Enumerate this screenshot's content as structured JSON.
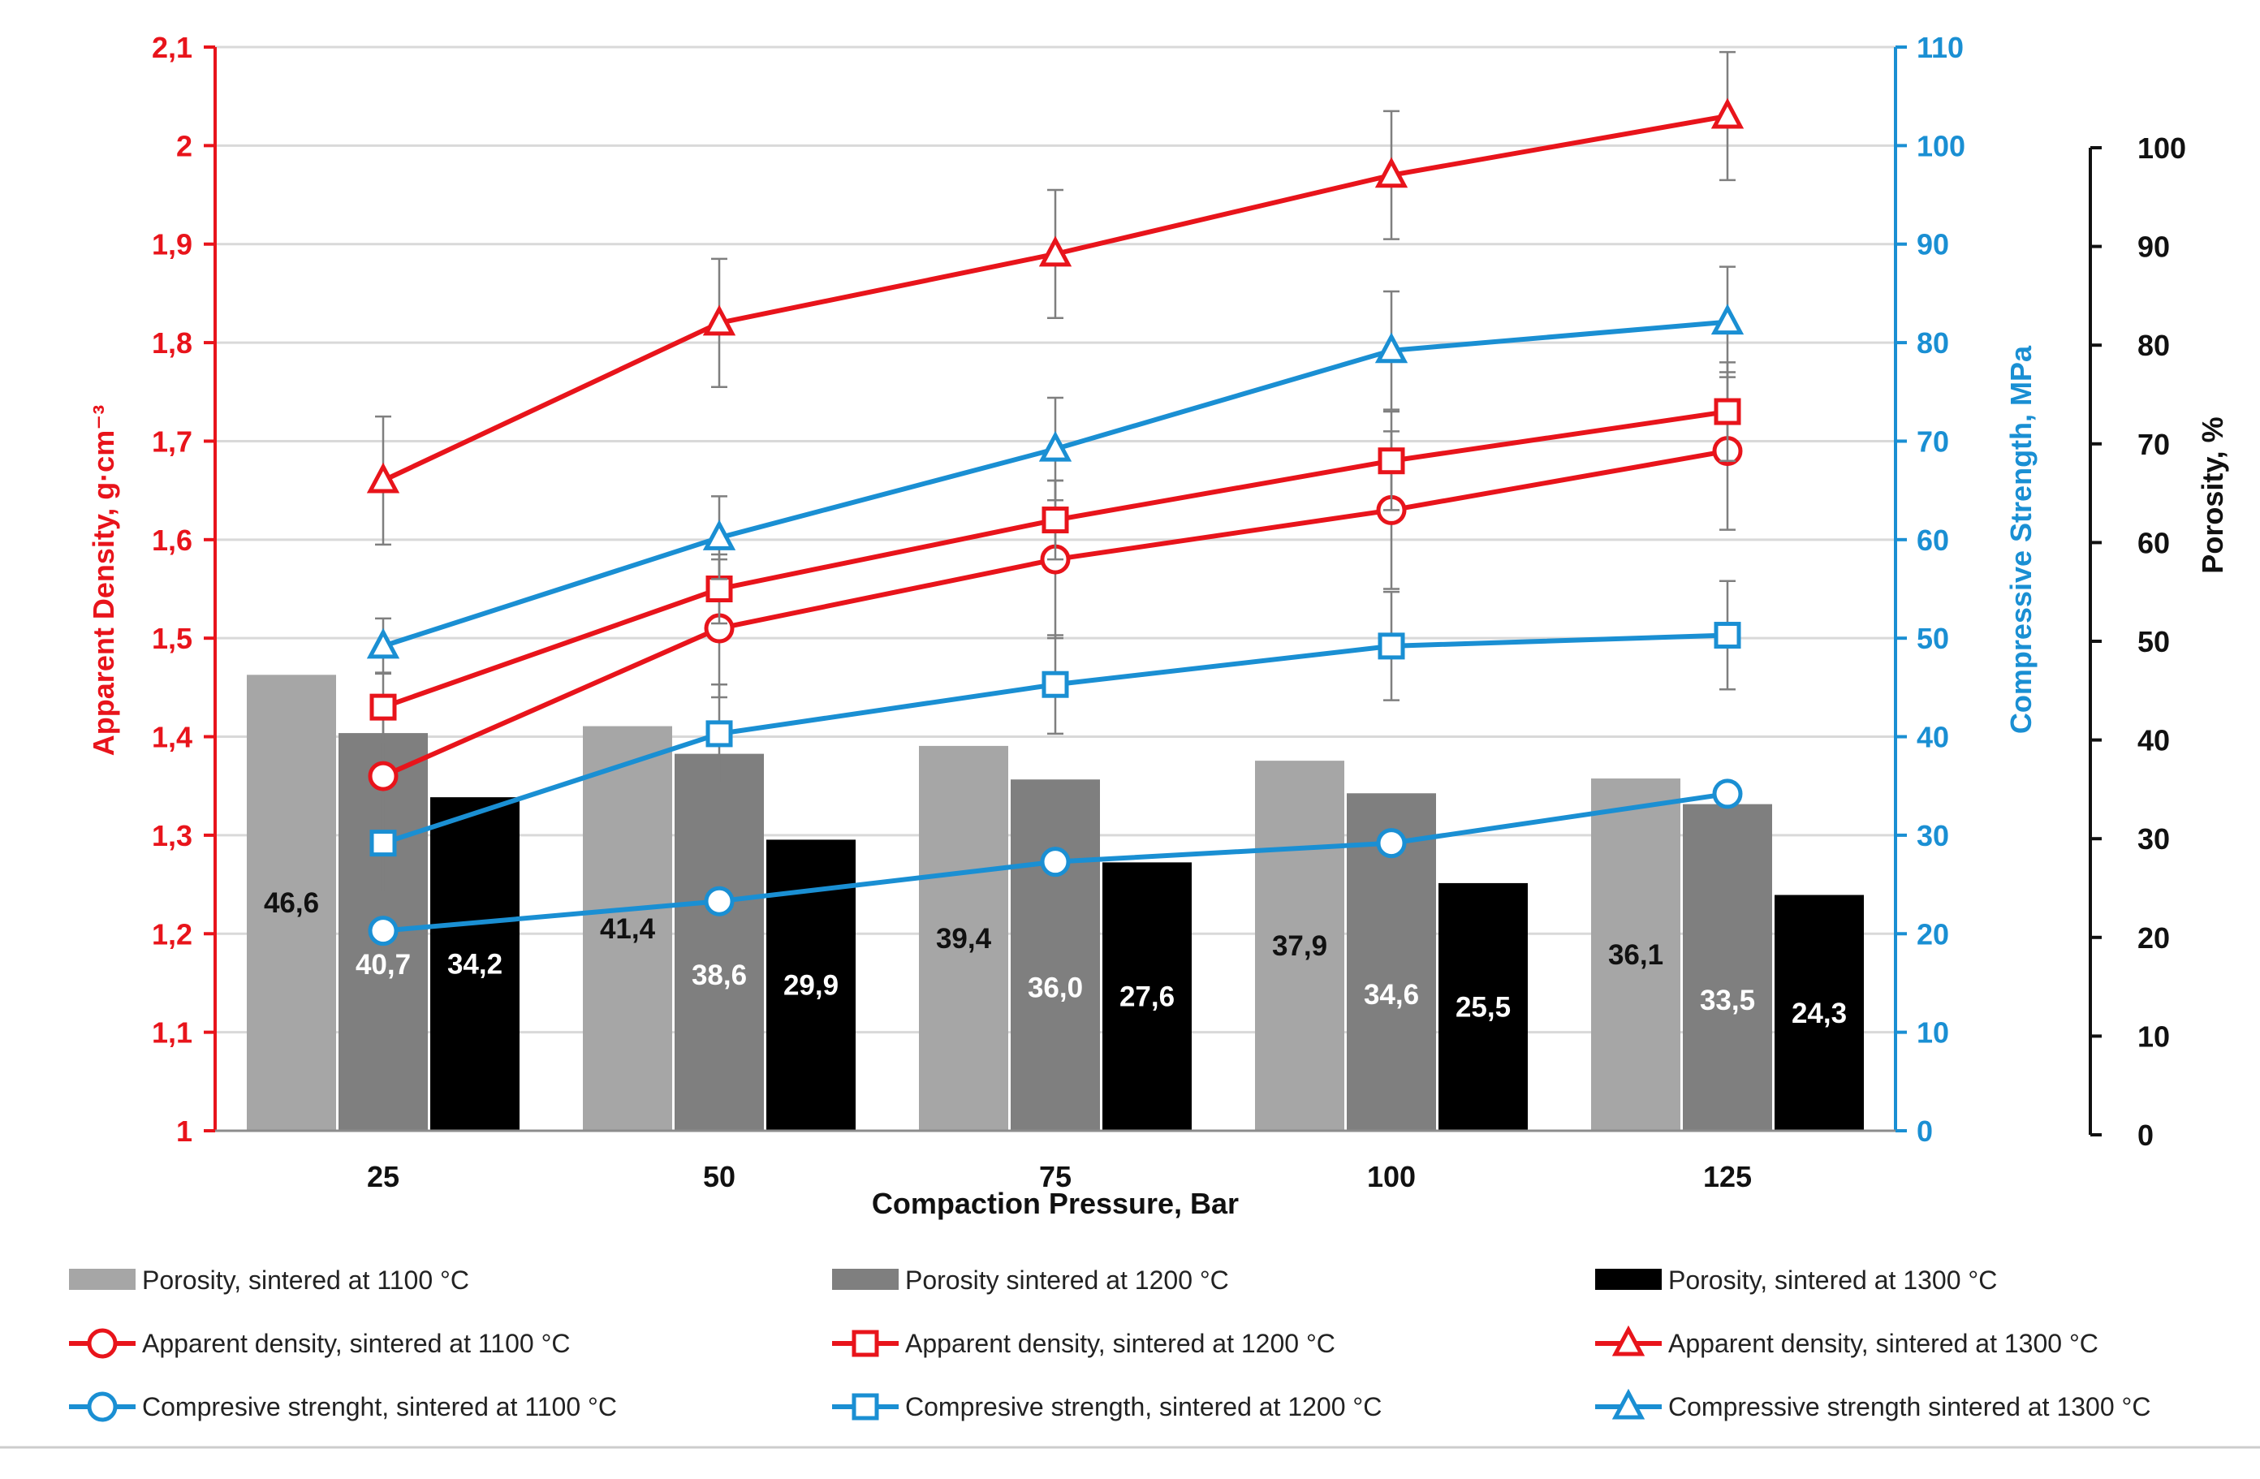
{
  "chart_data": {
    "type": "bar",
    "categories": [
      "25",
      "50",
      "75",
      "100",
      "125"
    ],
    "xlabel": "Compaction Pressure, Bar",
    "axes": {
      "left": {
        "label": "Apparent Density, g·cm⁻³",
        "range": [
          1,
          2.1
        ],
        "ticks": [
          "1",
          "1,1",
          "1,2",
          "1,3",
          "1,4",
          "1,5",
          "1,6",
          "1,7",
          "1,8",
          "1,9",
          "2",
          "2,1"
        ],
        "color": "#e8141b"
      },
      "right_inner": {
        "label": "Compressive Strength, MPa",
        "range": [
          0,
          110
        ],
        "ticks": [
          "0",
          "10",
          "20",
          "30",
          "40",
          "50",
          "60",
          "70",
          "80",
          "90",
          "100",
          "110"
        ],
        "color": "#1a8fd3"
      },
      "right_outer": {
        "label": "Porosity, %",
        "range": [
          0,
          100
        ],
        "ticks": [
          "0",
          "10",
          "20",
          "30",
          "40",
          "50",
          "60",
          "70",
          "80",
          "90",
          "100"
        ],
        "color": "#111111"
      }
    },
    "gridlines": true,
    "bar_series": [
      {
        "name": "Porosity, sintered at 1100 °C",
        "values": [
          46.6,
          41.4,
          39.4,
          37.9,
          36.1
        ],
        "labels": [
          "46,6",
          "41,4",
          "39,4",
          "37,9",
          "36,1"
        ],
        "color": "#a6a6a6",
        "label_color": "#111111"
      },
      {
        "name": "Porosity sintered at 1200 °C",
        "values": [
          40.7,
          38.6,
          36.0,
          34.6,
          33.5
        ],
        "labels": [
          "40,7",
          "38,6",
          "36,0",
          "34,6",
          "33,5"
        ],
        "color": "#7f7f7f",
        "label_color": "#ffffff"
      },
      {
        "name": "Porosity, sintered at 1300 °C",
        "values": [
          34.2,
          29.9,
          27.6,
          25.5,
          24.3
        ],
        "labels": [
          "34,2",
          "29,9",
          "27,6",
          "25,5",
          "24,3"
        ],
        "color": "#000000",
        "label_color": "#ffffff"
      }
    ],
    "line_series": [
      {
        "name": "Apparent density, sintered at 1100 °C",
        "axis": "left",
        "marker": "circle",
        "color": "#e8141b",
        "values": [
          1.36,
          1.51,
          1.58,
          1.63,
          1.69
        ],
        "errors": [
          0.06,
          0.07,
          0.08,
          0.08,
          0.08
        ]
      },
      {
        "name": "Apparent density, sintered at 1200 °C",
        "axis": "left",
        "marker": "square",
        "color": "#e8141b",
        "values": [
          1.43,
          1.55,
          1.62,
          1.68,
          1.73
        ],
        "errors": [
          0.035,
          0.035,
          0.04,
          0.05,
          0.05
        ]
      },
      {
        "name": "Apparent density, sintered at 1300 °C",
        "axis": "left",
        "marker": "triangle",
        "color": "#e8141b",
        "values": [
          1.66,
          1.82,
          1.89,
          1.97,
          2.03
        ],
        "errors": [
          0.065,
          0.065,
          0.065,
          0.065,
          0.065
        ]
      },
      {
        "name": "Compresive strenght, sintered at 1100 °C",
        "axis": "right_inner",
        "marker": "circle",
        "color": "#1a8fd3",
        "values": [
          20.3,
          23.3,
          27.3,
          29.2,
          34.2
        ],
        "errors": [
          0,
          0,
          0,
          0,
          0
        ]
      },
      {
        "name": "Compresive strength, sintered at 1200 °C",
        "axis": "right_inner",
        "marker": "square",
        "color": "#1a8fd3",
        "values": [
          29.2,
          40.3,
          45.3,
          49.2,
          50.3
        ],
        "errors": [
          5,
          5,
          5,
          5.5,
          5.5
        ]
      },
      {
        "name": "Compressive strength sintered at 1300 °C",
        "axis": "right_inner",
        "marker": "triangle",
        "color": "#1a8fd3",
        "values": [
          49.2,
          60.2,
          69.2,
          79.2,
          82.1
        ],
        "errors": [
          2.8,
          4.2,
          5.2,
          6,
          5.6
        ]
      }
    ],
    "legend_position": "bottom"
  }
}
